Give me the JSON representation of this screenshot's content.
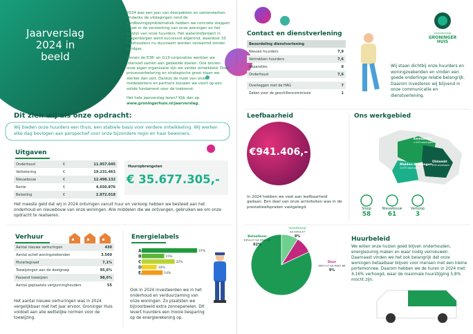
{
  "header": {
    "title": [
      "Jaarverslag",
      "2024 in beeld"
    ]
  },
  "intro": [
    "2024 was een jaar van doorpakken en samenwerken. Ondanks de uitdagingen rond de aardbevingsproblematiek hebben we concrete stappen gezet in de versterking van onze woningen en het welzijn van onze huurders. Het waterstofproject in Wagenborgen werd succesvol afgerond, waardoor 33 huishoudens nu duurzaam worden verwarmd zonder aardgas.",
    "Binnen de E38- en G13-corporaties werkten we intensief samen aan gedeelde doelen. Ook binnen onze eigen organisatie zijn we verder ontwikkeld. Door procesverbetering en strategische groei staan we sterker dan ooit. Dankzij de inzet van onze medewerkers en partners bouwen we voort op een solide fundament voor de toekomst.",
    "Het hele jaarverslag lezen? Kijk dan op",
    "www.groningerhuis.nl/jaarverslag."
  ],
  "opdracht": {
    "heading": "Dit zien wij als onze opdracht:",
    "text": "Wij bieden onze huurders een thuis, een stabiele basis voor verdere ontwikkeling. Wij werken elke dag bevlogen aan perspectief voor onze bijzondere regio en haar bewoners."
  },
  "uitgaven": {
    "title": "Uitgaven",
    "currency": "€",
    "rows": [
      [
        "Onderhoud",
        "11.957.045"
      ],
      [
        "Verbetering",
        "19.231.463"
      ],
      [
        "Nieuwbouw",
        "12.498.132"
      ],
      [
        "Rente",
        "4.650.876"
      ],
      [
        "Belasting",
        "2.872.018"
      ]
    ],
    "text": "Het meeste geld dat wij in 2024 ontvingen vanuit huur en verkoop hebben we besteed aan het onderhoud en nieuwbouw van onze woningen. Alle middelen die we ontvangen, gebruiken we om onze opdracht te realiseren."
  },
  "huuropbrengsten": {
    "label": "Huuropbrengsten",
    "amount": "€ 35.677.305,-"
  },
  "verhuur": {
    "title": "Verhuur",
    "rows": [
      [
        "Aantal nieuwe verhuringen",
        "430"
      ],
      [
        "Aantal actief woningzoekenden",
        "3.560"
      ],
      [
        "Mutatiegraad",
        "7,1%"
      ],
      [
        "Toewijzingen aan de doelgroep",
        "95,6%"
      ],
      [
        "Passend toewijzen",
        "98,6%"
      ],
      [
        "Aantal geplaatste vergunninghouders",
        "55"
      ]
    ],
    "text": "Het aantal nieuwe verhuringen was in 2024 vergelijkbaar met het jaar ervoor. Groninger Huis voldoet aan alle wettelijke normen voor de toewijzing."
  },
  "energielabels": {
    "title": "Energielabels",
    "categories": [
      "A",
      "B",
      "C",
      "D",
      "E/F/G"
    ],
    "values": [
      37,
      15,
      22,
      10,
      14
    ],
    "value_labels": [
      "37%",
      "15%",
      "22%",
      "10%",
      "14%"
    ],
    "colors": [
      "#1f9a3a",
      "#5cb33a",
      "#b9d431",
      "#f3d21c",
      "#f19a1c"
    ],
    "text": "Ook in 2024 investeerden we in het onderhoud en verduurzaming van onze woningen. Zo plaatsten we bijvoorbeeld extra zonnepanelen. Dit levert huurders een mooie besparing op de energierekening op."
  },
  "contact": {
    "title": "Contact en dienstverlening",
    "header": "Beoordeling dienstverlening",
    "rows": [
      [
        "Nieuwe huurders",
        "7,9"
      ],
      [
        "Vertrekken huurders",
        "7,6"
      ],
      [
        "Reparaties",
        "8"
      ],
      [
        "Onderhoud",
        "7,6"
      ]
    ],
    "rows2": [
      [
        "Overleggen met de HAG",
        "7"
      ],
      [
        "Zaken voor de geschillencommissie",
        "1"
      ]
    ],
    "text": "Wij staan dichtbij onze huurders en woningzoekenden en vinden een goede onderlinge relatie belangrijk. Daarom investeren wij blijvend in onze communicatie en dienstverlening."
  },
  "logo": {
    "small": "woonstichting",
    "name": [
      "GRONINGER",
      "HUIS"
    ]
  },
  "leefbaarheid": {
    "title": "Leefbaarheid",
    "amount": "€941.406,-",
    "text": "In 2024 hebben we veel aan leefbaarheid gedaan. Een deel van onze activiteiten was in de prestatieafspraken vastgelegd."
  },
  "werkgebied": {
    "title": "Ons werkgebied",
    "regions": [
      [
        "Eemsdelta",
        "1.453 woningen"
      ],
      [
        "Midden-Groningen",
        "2.079 woningen"
      ],
      [
        "Oldambt",
        "636 woningen"
      ]
    ],
    "stats": [
      [
        "Sloop",
        "58"
      ],
      [
        "Nieuwbouw",
        "61"
      ],
      [
        "Verkoop",
        "3"
      ]
    ]
  },
  "huurprijzen": {
    "labels": [
      [
        "Betaalbaar",
        "€454,47 tot €697,07"
      ],
      [
        "Goedkoop",
        "tot €454,47"
      ],
      [
        "Duur",
        "€697,07 tot €697,86"
      ]
    ],
    "values": [
      82,
      9,
      9
    ],
    "value_labels": [
      "82%",
      "9%",
      "9%"
    ],
    "colors": [
      "#1c9a54",
      "#6fcf8f",
      "#c2287e"
    ]
  },
  "huurbeleid": {
    "title": "Huurbeleid",
    "text": "We willen onze huizen goed blijven onderhouden, energiezuinig maken en waar nodig vernieuwen. Daarnaast vinden we het ook belangrijk dat onze woningen betaalbaar blijven voor mensen met een kleine portemonnee. Daarom hebben we de huren in 2024 met 4,16% verhoogd, waar de maximale huurstijging 5,8% mocht zijn."
  }
}
